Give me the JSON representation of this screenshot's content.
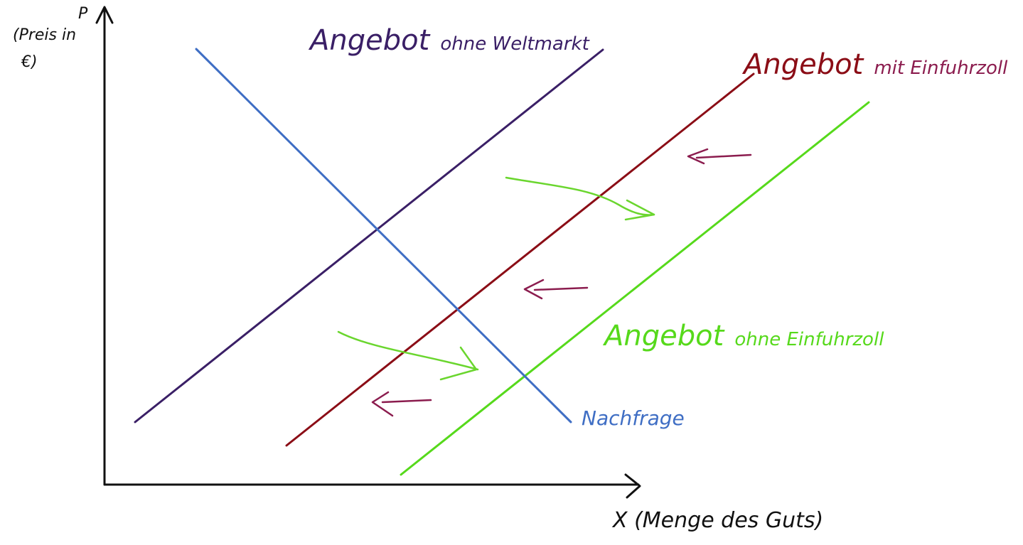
{
  "axes": {
    "y_label_top": "(Preis in",
    "y_label_bottom": "€)",
    "y_symbol": "P",
    "x_label": "X (Menge des Guts)"
  },
  "curves": {
    "angebot_ohne_weltmarkt": {
      "label_main": "Angebot",
      "label_sub": "ohne Weltmarkt",
      "color": "#3a1f66"
    },
    "angebot_mit_einfuhrzoll": {
      "label_main": "Angebot",
      "label_sub": "mit Einfuhrzoll",
      "color": "#8b0d16",
      "sub_color": "#8b1c4e"
    },
    "angebot_ohne_einfuhrzoll": {
      "label_main": "Angebot",
      "label_sub": "ohne Einfuhrzoll",
      "color": "#56d91b"
    },
    "nachfrage": {
      "label": "Nachfrage",
      "color": "#3f6ec4"
    }
  },
  "arrows": {
    "shift_right_color": "#6ad62e",
    "shift_left_color": "#8b1c4e"
  }
}
